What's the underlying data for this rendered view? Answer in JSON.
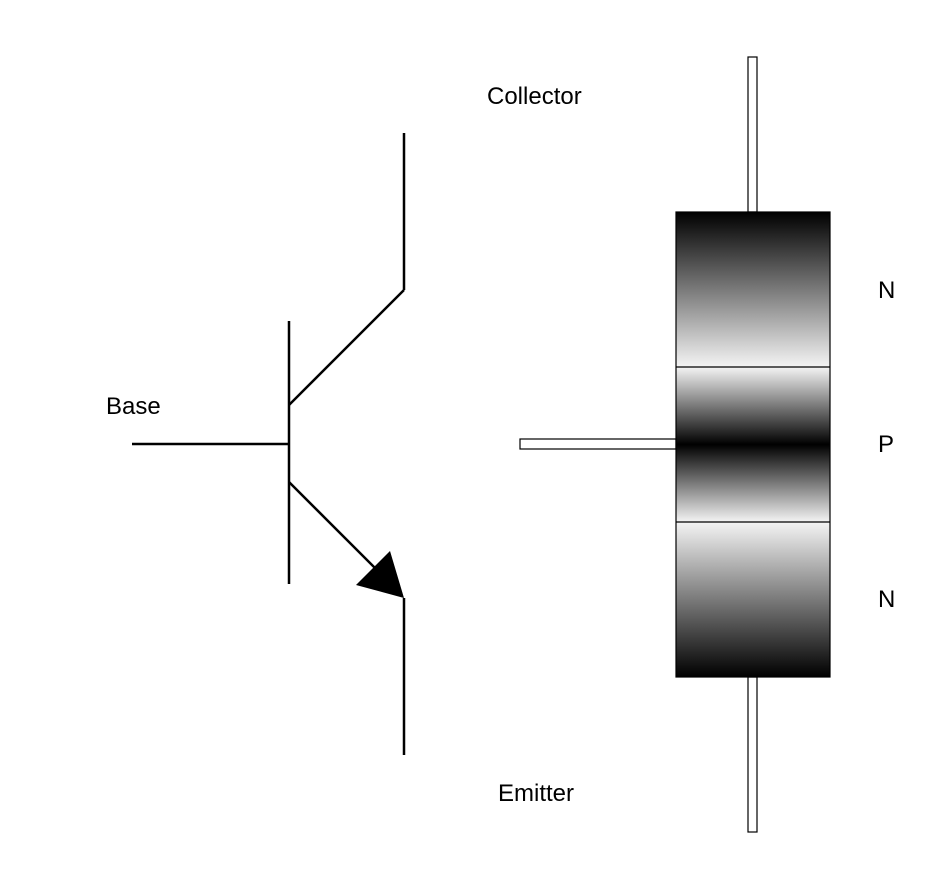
{
  "labels": {
    "collector": "Collector",
    "base": "Base",
    "emitter": "Emitter"
  },
  "layers": [
    {
      "label": "N"
    },
    {
      "label": "P"
    },
    {
      "label": "N"
    }
  ],
  "colors": {
    "stroke": "#000000",
    "background": "#ffffff"
  }
}
